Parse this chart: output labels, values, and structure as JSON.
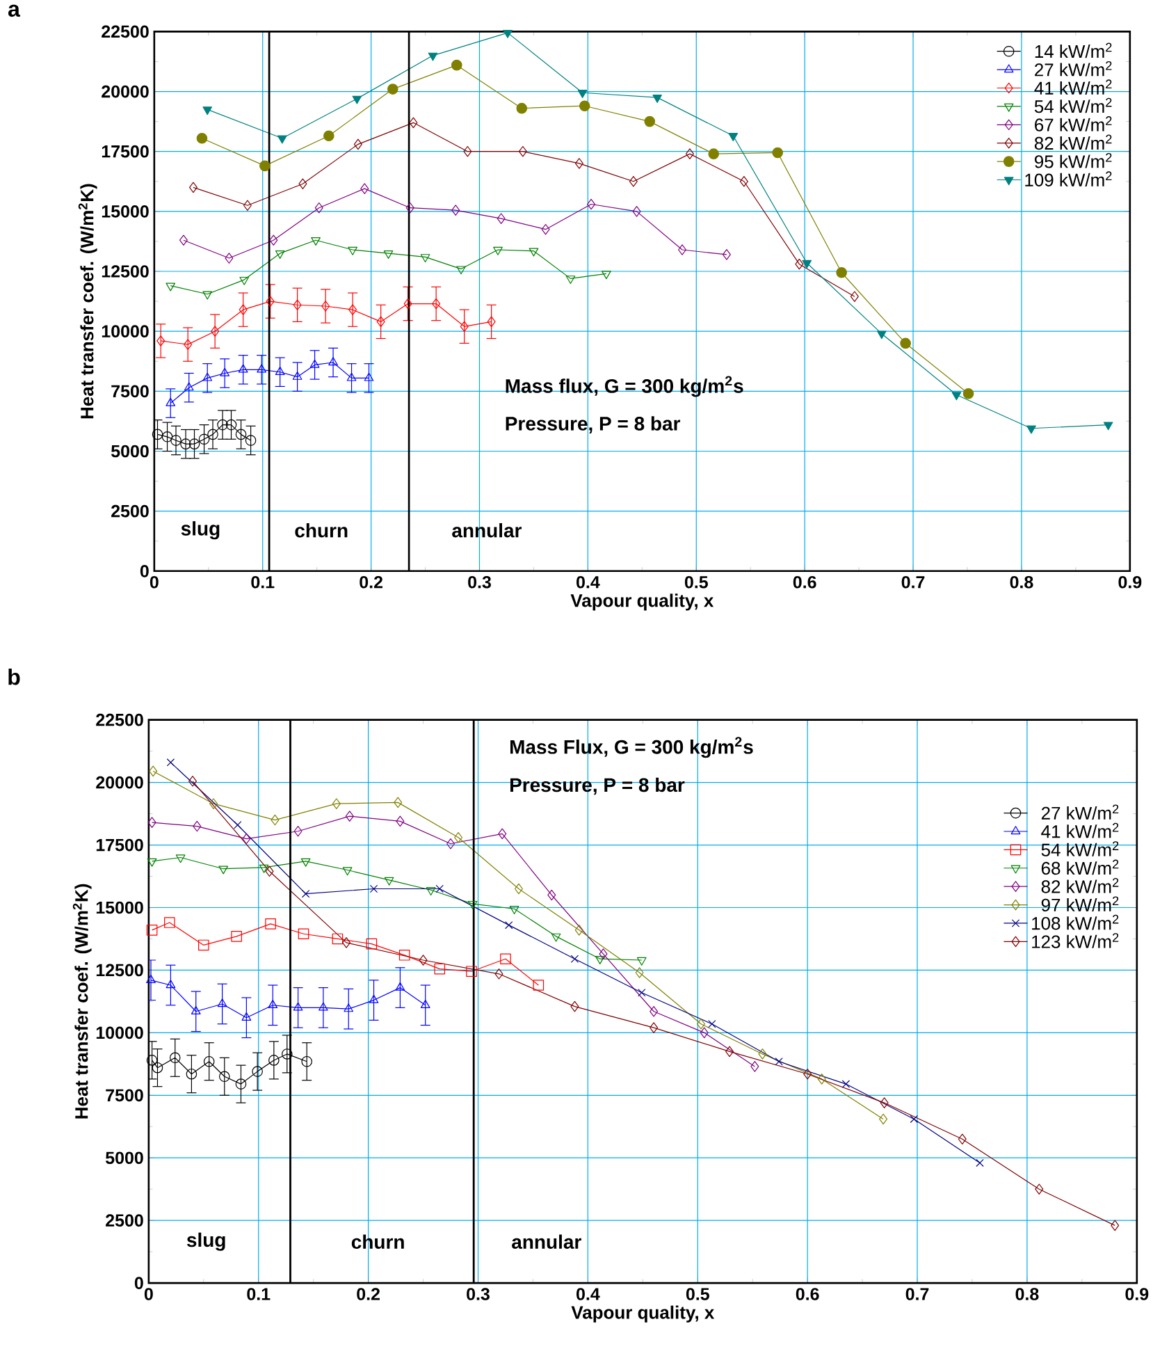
{
  "chart_data": [
    {
      "type": "line",
      "title": "a",
      "xlabel": "Vapour quality, x",
      "ylabel": "Heat transfer coef. (W/m$^{2}$K)",
      "xlim": [
        0,
        0.9
      ],
      "ylim": [
        0,
        22500
      ],
      "xticks": [
        0,
        0.1,
        0.2,
        0.3,
        0.4,
        0.5,
        0.6,
        0.7,
        0.8,
        0.9
      ],
      "yticks": [
        0,
        2500,
        5000,
        7500,
        10000,
        12500,
        15000,
        17500,
        20000,
        22500
      ],
      "grid": true,
      "legend": "top right",
      "ref_lines": [
        {
          "axis": "x",
          "value": 0.106
        },
        {
          "axis": "x",
          "value": 0.235
        }
      ],
      "annotations": [
        "slug",
        "churn",
        "annular",
        "Mass flux, G = 300 kg/m$^{2}$s",
        "Pressure, P = 8 bar"
      ],
      "series": [
        {
          "name": "14 kW/m$^{2}$",
          "color": "#000000",
          "marker": "circle",
          "x": [
            0.003,
            0.012,
            0.02,
            0.029,
            0.037,
            0.046,
            0.054,
            0.063,
            0.071,
            0.08,
            0.089
          ],
          "values": [
            5700,
            5600,
            5450,
            5300,
            5300,
            5500,
            5700,
            6100,
            6100,
            5700,
            5450
          ],
          "errors": [
            600,
            600,
            600,
            600,
            600,
            600,
            600,
            600,
            600,
            600,
            600
          ]
        },
        {
          "name": "27 kW/m$^{2}$",
          "color": "#0000ff",
          "marker": "triangle",
          "x": [
            0.015,
            0.032,
            0.049,
            0.065,
            0.082,
            0.099,
            0.116,
            0.132,
            0.148,
            0.165,
            0.182,
            0.198
          ],
          "values": [
            7000,
            7650,
            8050,
            8250,
            8400,
            8400,
            8300,
            8100,
            8600,
            8700,
            8050,
            8050
          ],
          "errors": [
            600,
            600,
            600,
            600,
            600,
            600,
            600,
            600,
            600,
            600,
            600,
            600
          ]
        },
        {
          "name": "41 kW/m$^{2}$",
          "color": "#ff0000",
          "marker": "diamond",
          "x": [
            0.006,
            0.031,
            0.056,
            0.082,
            0.107,
            0.132,
            0.158,
            0.183,
            0.209,
            0.234,
            0.26,
            0.286,
            0.311
          ],
          "values": [
            9600,
            9450,
            10000,
            10900,
            11250,
            11100,
            11050,
            10900,
            10400,
            11150,
            11150,
            10200,
            10400
          ],
          "errors": [
            700,
            700,
            700,
            700,
            700,
            700,
            700,
            700,
            700,
            700,
            700,
            700,
            700
          ]
        },
        {
          "name": "54 kW/m$^{2}$",
          "color": "#008000",
          "marker": "triangle-down",
          "x": [
            0.015,
            0.049,
            0.083,
            0.116,
            0.149,
            0.183,
            0.216,
            0.25,
            0.283,
            0.317,
            0.35,
            0.384,
            0.417
          ],
          "values": [
            11900,
            11550,
            12150,
            13250,
            13800,
            13400,
            13250,
            13100,
            12600,
            13400,
            13350,
            12200,
            12400
          ]
        },
        {
          "name": "67 kW/m$^{2}$",
          "color": "#800080",
          "marker": "diamond",
          "x": [
            0.027,
            0.069,
            0.11,
            0.152,
            0.194,
            0.236,
            0.278,
            0.32,
            0.361,
            0.403,
            0.445,
            0.487,
            0.528
          ],
          "values": [
            13800,
            13050,
            13800,
            15150,
            15950,
            15150,
            15050,
            14700,
            14250,
            15300,
            15000,
            13400,
            13200
          ]
        },
        {
          "name": "82 kW/m$^{2}$",
          "color": "#800000",
          "marker": "diamond",
          "x": [
            0.036,
            0.086,
            0.137,
            0.188,
            0.239,
            0.289,
            0.34,
            0.392,
            0.442,
            0.494,
            0.544,
            0.595,
            0.646
          ],
          "values": [
            16000,
            15250,
            16150,
            17800,
            18700,
            17500,
            17500,
            17000,
            16250,
            17400,
            16250,
            12800,
            11450
          ]
        },
        {
          "name": "95 kW/m$^{2}$",
          "color": "#808000",
          "marker": "circle-filled",
          "x": [
            0.044,
            0.102,
            0.161,
            0.22,
            0.279,
            0.339,
            0.397,
            0.457,
            0.516,
            0.575,
            0.634,
            0.693,
            0.751
          ],
          "values": [
            18050,
            16900,
            18150,
            20100,
            21100,
            19300,
            19400,
            18750,
            17400,
            17450,
            12450,
            9500,
            7400
          ]
        },
        {
          "name": "109 kW/m$^{2}$",
          "color": "#008080",
          "marker": "triangle-down-filled",
          "x": [
            0.049,
            0.118,
            0.187,
            0.257,
            0.326,
            0.395,
            0.464,
            0.534,
            0.602,
            0.671,
            0.74,
            0.809,
            0.88
          ],
          "values": [
            19250,
            18050,
            19700,
            21500,
            22450,
            19950,
            19750,
            18150,
            12850,
            9900,
            7350,
            5950,
            6100
          ]
        }
      ]
    },
    {
      "type": "line",
      "title": "b",
      "xlabel": "Vapour quality, x",
      "ylabel": "Heat transfer coef. (W/m$^{2}$K)",
      "xlim": [
        0,
        0.9
      ],
      "ylim": [
        0,
        22500
      ],
      "xticks": [
        0,
        0.1,
        0.2,
        0.3,
        0.4,
        0.5,
        0.6,
        0.7,
        0.8,
        0.9
      ],
      "yticks": [
        0,
        2500,
        5000,
        7500,
        10000,
        12500,
        15000,
        17500,
        20000,
        22500
      ],
      "grid": true,
      "legend": "right",
      "ref_lines": [
        {
          "axis": "x",
          "value": 0.129
        },
        {
          "axis": "x",
          "value": 0.296
        }
      ],
      "annotations": [
        "slug",
        "churn",
        "annular",
        "Mass Flux, G = 300 kg/m$^{2}$s",
        "Pressure, P = 8 bar"
      ],
      "series": [
        {
          "name": "27 kW/m$^{2}$",
          "color": "#000000",
          "marker": "circle",
          "x": [
            0.003,
            0.008,
            0.024,
            0.039,
            0.055,
            0.069,
            0.084,
            0.099,
            0.114,
            0.126,
            0.144
          ],
          "values": [
            8900,
            8600,
            9000,
            8350,
            8850,
            8250,
            7950,
            8450,
            8900,
            9150,
            8850
          ],
          "errors": [
            750,
            750,
            750,
            750,
            750,
            750,
            750,
            750,
            750,
            750,
            750
          ]
        },
        {
          "name": "41 kW/m$^{2}$",
          "color": "#0000ff",
          "marker": "triangle",
          "x": [
            0.002,
            0.02,
            0.043,
            0.067,
            0.089,
            0.113,
            0.136,
            0.159,
            0.182,
            0.205,
            0.229,
            0.252
          ],
          "values": [
            12100,
            11900,
            10850,
            11150,
            10600,
            11100,
            11000,
            11000,
            10950,
            11300,
            11800,
            11100
          ],
          "errors": [
            800,
            800,
            800,
            800,
            800,
            800,
            800,
            800,
            800,
            800,
            800,
            800
          ]
        },
        {
          "name": "54 kW/m$^{2}$",
          "color": "#ff0000",
          "marker": "square",
          "x": [
            0.003,
            0.019,
            0.05,
            0.08,
            0.111,
            0.141,
            0.172,
            0.203,
            0.233,
            0.265,
            0.294,
            0.325,
            0.355
          ],
          "values": [
            14100,
            14400,
            13500,
            13850,
            14350,
            13950,
            13750,
            13550,
            13100,
            12550,
            12450,
            12950,
            11900
          ]
        },
        {
          "name": "68 kW/m$^{2}$",
          "color": "#008000",
          "marker": "triangle-down",
          "x": [
            0.003,
            0.029,
            0.068,
            0.105,
            0.143,
            0.181,
            0.219,
            0.257,
            0.295,
            0.333,
            0.371,
            0.411,
            0.449
          ],
          "values": [
            16850,
            17000,
            16550,
            16600,
            16850,
            16500,
            16100,
            15700,
            15150,
            14950,
            13850,
            12950,
            12900
          ]
        },
        {
          "name": "82 kW/m$^{2}$",
          "color": "#800080",
          "marker": "diamond",
          "x": [
            0.003,
            0.044,
            0.089,
            0.136,
            0.183,
            0.229,
            0.275,
            0.322,
            0.367,
            0.414,
            0.46,
            0.506,
            0.552
          ],
          "values": [
            18400,
            18250,
            17750,
            18050,
            18650,
            18450,
            17550,
            17950,
            15500,
            13150,
            10850,
            10000,
            8650
          ]
        },
        {
          "name": "97 kW/m$^{2}$",
          "color": "#808000",
          "marker": "diamond",
          "x": [
            0.004,
            0.059,
            0.115,
            0.171,
            0.227,
            0.282,
            0.337,
            0.392,
            0.447,
            0.503,
            0.559,
            0.613,
            0.669
          ],
          "values": [
            20450,
            19150,
            18500,
            19150,
            19200,
            17800,
            15750,
            14100,
            12400,
            10350,
            9150,
            8150,
            6550
          ]
        },
        {
          "name": "108 kW/m$^{2}$",
          "color": "#000080",
          "marker": "cross",
          "x": [
            0.02,
            0.081,
            0.143,
            0.205,
            0.265,
            0.328,
            0.388,
            0.449,
            0.513,
            0.574,
            0.635,
            0.697,
            0.757
          ],
          "values": [
            20800,
            18300,
            15550,
            15750,
            15750,
            14300,
            12950,
            11600,
            10350,
            8850,
            7950,
            6550,
            4800
          ]
        },
        {
          "name": "123 kW/m$^{2}$",
          "color": "#800000",
          "marker": "diamond",
          "x": [
            0.04,
            0.11,
            0.18,
            0.25,
            0.319,
            0.388,
            0.46,
            0.529,
            0.6,
            0.67,
            0.741,
            0.811,
            0.88
          ],
          "values": [
            20050,
            16450,
            13600,
            12900,
            12350,
            11050,
            10200,
            9250,
            8350,
            7200,
            5750,
            3750,
            2300
          ]
        }
      ]
    }
  ]
}
